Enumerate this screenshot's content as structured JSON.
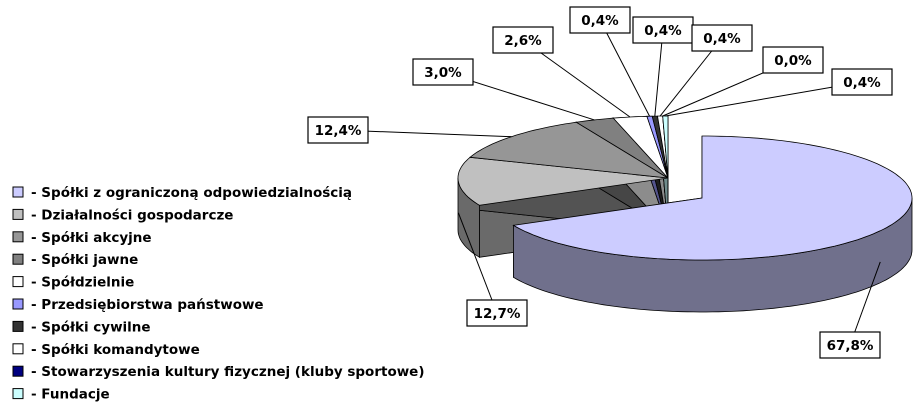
{
  "chart_data": {
    "type": "pie3d",
    "categories": [
      "- Spółki z ograniczoną odpowiedzialnością",
      "- Działalności gospodarcze",
      "- Spółki akcyjne",
      "- Spółki jawne",
      "- Spółdzielnie",
      "- Przedsiębiorstwa państwowe",
      "- Spółki cywilne",
      "- Spółki komandytowe",
      "- Stowarzyszenia kultury fizycznej (kluby sportowe)",
      "- Fundacje"
    ],
    "values": [
      67.8,
      12.7,
      12.4,
      3.0,
      2.6,
      0.4,
      0.4,
      0.4,
      0.0,
      0.4
    ],
    "value_labels": [
      "67,8%",
      "12,7%",
      "12,4%",
      "3,0%",
      "2,6%",
      "0,4%",
      "0,4%",
      "0,4%",
      "0,0%",
      "0,4%"
    ],
    "colors": [
      "#ccccff",
      "#c0c0c0",
      "#969696",
      "#808080",
      "#ffffff",
      "#9999ff",
      "#333333",
      "#ffffff",
      "#000080",
      "#ccffff"
    ],
    "legend": "left"
  }
}
